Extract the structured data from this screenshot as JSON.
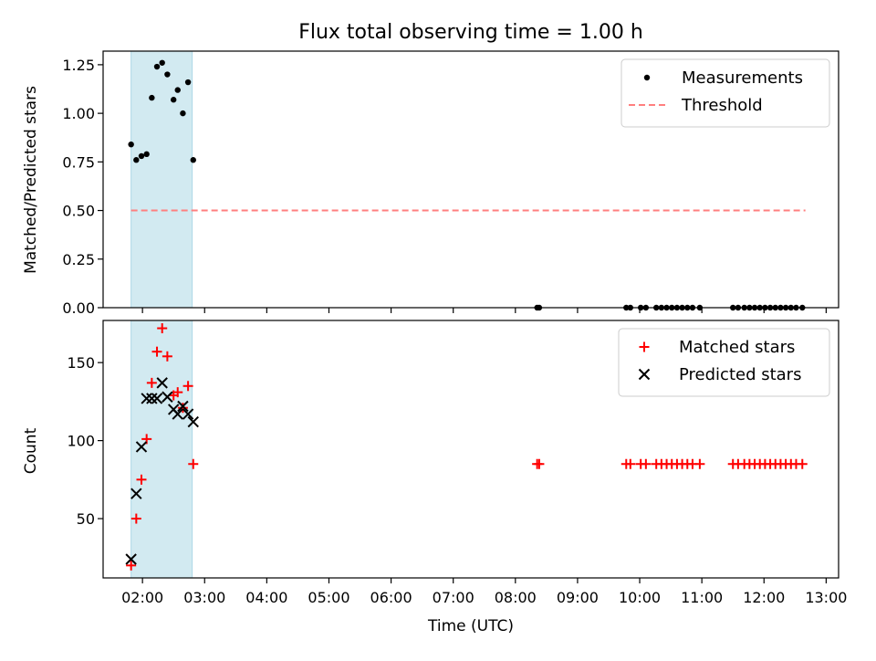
{
  "chart_data": {
    "title": "Flux total observing time = 1.00 h",
    "xlabel": "Time (UTC)",
    "x_unit": "hours UTC",
    "xlim": [
      "01:22",
      "13:12"
    ],
    "x_ticks": [
      "02:00",
      "03:00",
      "04:00",
      "05:00",
      "06:00",
      "07:00",
      "08:00",
      "09:00",
      "10:00",
      "11:00",
      "12:00",
      "13:00"
    ],
    "highlight_span": [
      "01:49",
      "02:48"
    ],
    "highlight_color": "#add8e6",
    "panels": [
      {
        "type": "scatter",
        "ylabel": "Matched/Predicted stars",
        "ylim": [
          0,
          1.32
        ],
        "y_ticks": [
          "0.00",
          "0.25",
          "0.50",
          "0.75",
          "1.00",
          "1.25"
        ],
        "legend_position": "top-right",
        "legend": [
          {
            "label": "Measurements",
            "marker": "dot",
            "color": "#000000"
          },
          {
            "label": "Threshold",
            "marker": "dashed-line",
            "color": "#ff7f7f"
          }
        ],
        "threshold": {
          "y": 0.5,
          "x_range": [
            "01:49",
            "12:40"
          ],
          "color": "#ff7f7f"
        },
        "measurements": [
          {
            "x": "01:49",
            "y": 0.84
          },
          {
            "x": "01:54",
            "y": 0.76
          },
          {
            "x": "01:59",
            "y": 0.78
          },
          {
            "x": "02:04",
            "y": 0.79
          },
          {
            "x": "02:09",
            "y": 1.08
          },
          {
            "x": "02:14",
            "y": 1.24
          },
          {
            "x": "02:19",
            "y": 1.26
          },
          {
            "x": "02:24",
            "y": 1.2
          },
          {
            "x": "02:30",
            "y": 1.07
          },
          {
            "x": "02:34",
            "y": 1.12
          },
          {
            "x": "02:39",
            "y": 1.0
          },
          {
            "x": "02:44",
            "y": 1.16
          },
          {
            "x": "02:49",
            "y": 0.76
          },
          {
            "x": "08:21",
            "y": 0.0
          },
          {
            "x": "08:23",
            "y": 0.0
          },
          {
            "x": "09:47",
            "y": 0.0
          },
          {
            "x": "09:51",
            "y": 0.0
          },
          {
            "x": "10:01",
            "y": 0.0
          },
          {
            "x": "10:06",
            "y": 0.0
          },
          {
            "x": "10:16",
            "y": 0.0
          },
          {
            "x": "10:21",
            "y": 0.0
          },
          {
            "x": "10:26",
            "y": 0.0
          },
          {
            "x": "10:31",
            "y": 0.0
          },
          {
            "x": "10:36",
            "y": 0.0
          },
          {
            "x": "10:41",
            "y": 0.0
          },
          {
            "x": "10:46",
            "y": 0.0
          },
          {
            "x": "10:51",
            "y": 0.0
          },
          {
            "x": "10:58",
            "y": 0.0
          },
          {
            "x": "11:30",
            "y": 0.0
          },
          {
            "x": "11:35",
            "y": 0.0
          },
          {
            "x": "11:41",
            "y": 0.0
          },
          {
            "x": "11:46",
            "y": 0.0
          },
          {
            "x": "11:51",
            "y": 0.0
          },
          {
            "x": "11:56",
            "y": 0.0
          },
          {
            "x": "12:01",
            "y": 0.0
          },
          {
            "x": "12:06",
            "y": 0.0
          },
          {
            "x": "12:11",
            "y": 0.0
          },
          {
            "x": "12:16",
            "y": 0.0
          },
          {
            "x": "12:21",
            "y": 0.0
          },
          {
            "x": "12:26",
            "y": 0.0
          },
          {
            "x": "12:31",
            "y": 0.0
          },
          {
            "x": "12:37",
            "y": 0.0
          }
        ]
      },
      {
        "type": "scatter",
        "ylabel": "Count",
        "ylim": [
          12,
          177
        ],
        "y_ticks": [
          "50",
          "100",
          "150"
        ],
        "legend_position": "top-right",
        "series": [
          {
            "name": "Matched stars",
            "marker": "plus",
            "color": "#ff0000",
            "points": [
              {
                "x": "01:49",
                "y": 20
              },
              {
                "x": "01:54",
                "y": 50
              },
              {
                "x": "01:59",
                "y": 75
              },
              {
                "x": "02:04",
                "y": 101
              },
              {
                "x": "02:09",
                "y": 137
              },
              {
                "x": "02:14",
                "y": 157
              },
              {
                "x": "02:19",
                "y": 172
              },
              {
                "x": "02:24",
                "y": 154
              },
              {
                "x": "02:30",
                "y": 129
              },
              {
                "x": "02:34",
                "y": 131
              },
              {
                "x": "02:39",
                "y": 121
              },
              {
                "x": "02:44",
                "y": 135
              },
              {
                "x": "02:49",
                "y": 85
              },
              {
                "x": "08:21",
                "y": 85
              },
              {
                "x": "08:23",
                "y": 85
              },
              {
                "x": "09:47",
                "y": 85
              },
              {
                "x": "09:51",
                "y": 85
              },
              {
                "x": "10:01",
                "y": 85
              },
              {
                "x": "10:06",
                "y": 85
              },
              {
                "x": "10:16",
                "y": 85
              },
              {
                "x": "10:21",
                "y": 85
              },
              {
                "x": "10:26",
                "y": 85
              },
              {
                "x": "10:31",
                "y": 85
              },
              {
                "x": "10:36",
                "y": 85
              },
              {
                "x": "10:41",
                "y": 85
              },
              {
                "x": "10:46",
                "y": 85
              },
              {
                "x": "10:51",
                "y": 85
              },
              {
                "x": "10:58",
                "y": 85
              },
              {
                "x": "11:30",
                "y": 85
              },
              {
                "x": "11:35",
                "y": 85
              },
              {
                "x": "11:41",
                "y": 85
              },
              {
                "x": "11:46",
                "y": 85
              },
              {
                "x": "11:51",
                "y": 85
              },
              {
                "x": "11:56",
                "y": 85
              },
              {
                "x": "12:01",
                "y": 85
              },
              {
                "x": "12:06",
                "y": 85
              },
              {
                "x": "12:11",
                "y": 85
              },
              {
                "x": "12:16",
                "y": 85
              },
              {
                "x": "12:21",
                "y": 85
              },
              {
                "x": "12:26",
                "y": 85
              },
              {
                "x": "12:31",
                "y": 85
              },
              {
                "x": "12:37",
                "y": 85
              }
            ]
          },
          {
            "name": "Predicted stars",
            "marker": "x",
            "color": "#000000",
            "points": [
              {
                "x": "01:49",
                "y": 24
              },
              {
                "x": "01:54",
                "y": 66
              },
              {
                "x": "01:59",
                "y": 96
              },
              {
                "x": "02:04",
                "y": 127
              },
              {
                "x": "02:09",
                "y": 127
              },
              {
                "x": "02:14",
                "y": 127
              },
              {
                "x": "02:19",
                "y": 137
              },
              {
                "x": "02:24",
                "y": 128
              },
              {
                "x": "02:30",
                "y": 120
              },
              {
                "x": "02:34",
                "y": 117
              },
              {
                "x": "02:39",
                "y": 122
              },
              {
                "x": "02:44",
                "y": 117
              },
              {
                "x": "02:49",
                "y": 112
              }
            ]
          }
        ]
      }
    ]
  }
}
